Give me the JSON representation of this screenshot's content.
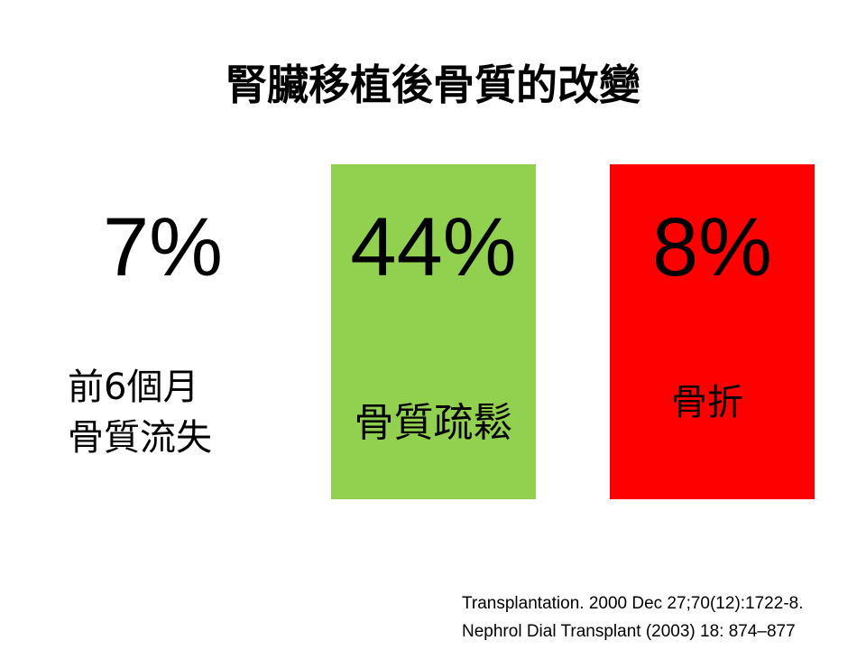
{
  "header": {
    "title": "腎臟移植後骨質的改變"
  },
  "stats": [
    {
      "value": "7%",
      "label": [
        "前6個月",
        "骨質流失"
      ]
    },
    {
      "value": "44%",
      "label": [
        "骨質疏鬆"
      ]
    },
    {
      "value": "8%",
      "label": [
        "骨折"
      ]
    }
  ],
  "references": [
    "Transplantation. 2000 Dec 27;70(12):1722-8.",
    "Nephrol Dial Transplant (2003) 18: 874–877"
  ]
}
